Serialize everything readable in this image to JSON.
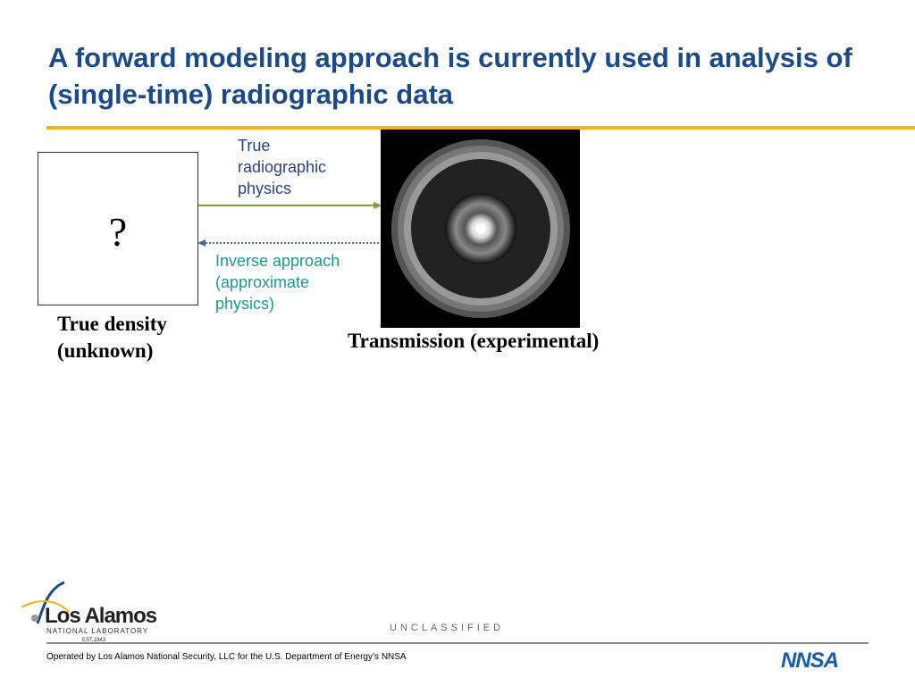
{
  "title": "A forward modeling approach is currently used in analysis of (single-time) radiographic data",
  "unknown_box": {
    "symbol": "?",
    "caption_line1": "True density",
    "caption_line2": "(unknown)"
  },
  "forward_arrow": {
    "line1": "True",
    "line2": "radiographic",
    "line3": "physics",
    "color": "#8a9a3a"
  },
  "inverse_arrow": {
    "line1": "Inverse approach",
    "line2": "(approximate",
    "line3": "physics)",
    "color": "#4a6a8a"
  },
  "image_caption": "Transmission (experimental)",
  "footer": {
    "classification": "UNCLASSIFIED",
    "operated_by": "Operated by Los Alamos National Security, LLC for the U.S. Department of Energy’s NNSA",
    "logo_lanl": {
      "name": "Los Alamos",
      "sub": "NATIONAL LABORATORY",
      "est": "EST.1943"
    },
    "logo_nnsa": "NNSA"
  }
}
